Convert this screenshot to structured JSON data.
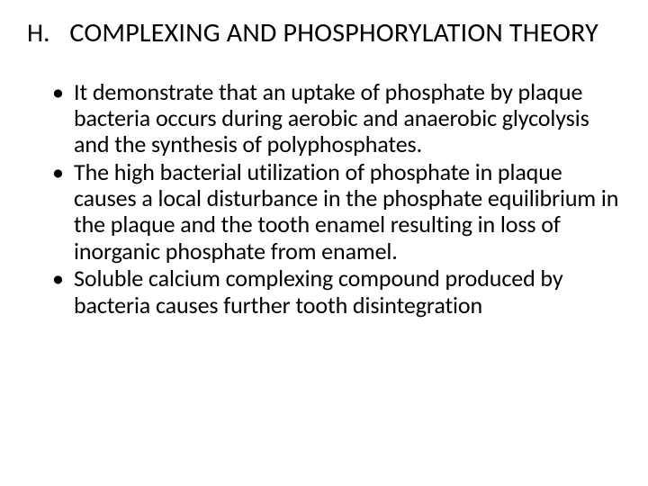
{
  "heading": {
    "letter": "H.",
    "title": "COMPLEXING AND PHOSPHORYLATION THEORY"
  },
  "bullets": [
    "It demonstrate that an uptake of phosphate by plaque bacteria occurs during aerobic and anaerobic glycolysis and the synthesis of polyphosphates.",
    "The high bacterial utilization of phosphate in plaque causes a local disturbance in the phosphate equilibrium in the plaque and the tooth enamel resulting in loss of inorganic phosphate from enamel.",
    "Soluble calcium complexing compound produced by bacteria causes further tooth disintegration"
  ],
  "watermark": "",
  "colors": {
    "background": "#ffffff",
    "text": "#000000"
  },
  "typography": {
    "heading_fontsize": 30,
    "body_fontsize": 26,
    "font_family": "Calibri"
  }
}
